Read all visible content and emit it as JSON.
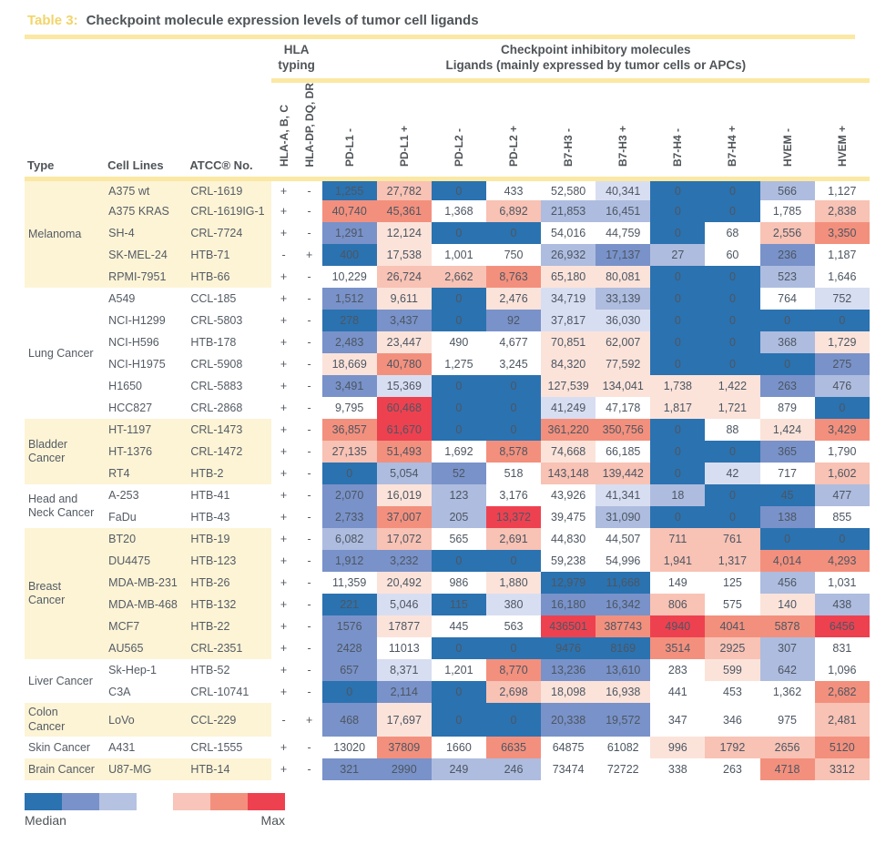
{
  "title": {
    "label": "Table 3:",
    "text": "Checkpoint molecule expression levels of tumor cell ligands"
  },
  "header": {
    "hla_group": "HLA\ntyping",
    "cp_line1": "Checkpoint inhibitory molecules",
    "cp_line2": "Ligands (mainly expressed by tumor cells or APCs)",
    "col_type": "Type",
    "col_cell_lines": "Cell Lines",
    "col_atcc": "ATCC® No.",
    "rotated_cols": [
      "HLA-A, B, C",
      "HLA-DP, DQ, DR",
      "PD-L1 -",
      "PD-L1 +",
      "PD-L2 -",
      "PD-L2 +",
      "B7-H3 -",
      "B7-H3 +",
      "B7-H4 -",
      "B7-H4 +",
      "HVEM -",
      "HVEM +"
    ]
  },
  "accents": {
    "rule_yellow": "#fbe8a2",
    "row_cream": "#fdf4d6",
    "title_gold": "#f2d469",
    "heading_text": "#4f5458",
    "body_text": "#545b64"
  },
  "palette": {
    "b3": "#2b72b0",
    "b2": "#7992c9",
    "b1": "#aebcdf",
    "b0": "#d8def1",
    "w": "#ffffff",
    "r0": "#fbe3da",
    "r1": "#f8c2b4",
    "r2": "#f3907d",
    "r3": "#ee4150"
  },
  "legend": {
    "median_label": "Median",
    "max_label": "Max",
    "blues": [
      "#2b72b0",
      "#7992c9",
      "#b5c2e2"
    ],
    "reds": [
      "#f9c4b9",
      "#f3907d",
      "#ee4150"
    ]
  },
  "groups": [
    {
      "type": "Melanoma",
      "shaded": true,
      "rows": [
        {
          "line": "A375 wt",
          "atcc": "CRL-1619",
          "hla": [
            "+",
            "-"
          ],
          "v": [
            "1,255",
            "27,782",
            "0",
            "433",
            "52,580",
            "40,341",
            "0",
            "0",
            "566",
            "1,127"
          ],
          "c": [
            "b3",
            "r1",
            "b3",
            "w",
            "w",
            "b0",
            "b3",
            "b3",
            "b1",
            "w"
          ]
        },
        {
          "line": "A375 KRAS",
          "atcc": "CRL-1619IG-1",
          "hla": [
            "+",
            "-"
          ],
          "v": [
            "40,740",
            "45,361",
            "1,368",
            "6,892",
            "21,853",
            "16,451",
            "0",
            "0",
            "1,785",
            "2,838"
          ],
          "c": [
            "r2",
            "r2",
            "w",
            "r1",
            "b1",
            "b1",
            "b3",
            "b3",
            "w",
            "r1"
          ]
        },
        {
          "line": "SH-4",
          "atcc": "CRL-7724",
          "hla": [
            "+",
            "-"
          ],
          "v": [
            "1,291",
            "12,124",
            "0",
            "0",
            "54,016",
            "44,759",
            "0",
            "68",
            "2,556",
            "3,350"
          ],
          "c": [
            "b2",
            "r0",
            "b3",
            "b3",
            "w",
            "w",
            "b3",
            "w",
            "r1",
            "r2"
          ]
        },
        {
          "line": "SK-MEL-24",
          "atcc": "HTB-71",
          "hla": [
            "-",
            "+"
          ],
          "v": [
            "400",
            "17,538",
            "1,001",
            "750",
            "26,932",
            "17,137",
            "27",
            "60",
            "236",
            "1,187"
          ],
          "c": [
            "b3",
            "r0",
            "w",
            "w",
            "b1",
            "b2",
            "b1",
            "w",
            "b2",
            "w"
          ]
        },
        {
          "line": "RPMI-7951",
          "atcc": "HTB-66",
          "hla": [
            "+",
            "-"
          ],
          "v": [
            "10,229",
            "26,724",
            "2,662",
            "8,763",
            "65,180",
            "80,081",
            "0",
            "0",
            "523",
            "1,646"
          ],
          "c": [
            "w",
            "r1",
            "r1",
            "r2",
            "r0",
            "r0",
            "b3",
            "b3",
            "b1",
            "w"
          ]
        }
      ]
    },
    {
      "type": "Lung Cancer",
      "shaded": false,
      "rows": [
        {
          "line": "A549",
          "atcc": "CCL-185",
          "hla": [
            "+",
            "-"
          ],
          "v": [
            "1,512",
            "9,611",
            "0",
            "2,476",
            "34,719",
            "33,139",
            "0",
            "0",
            "764",
            "752"
          ],
          "c": [
            "b2",
            "r0",
            "b3",
            "r0",
            "b0",
            "b1",
            "b3",
            "b3",
            "w",
            "b0"
          ]
        },
        {
          "line": "NCI-H1299",
          "atcc": "CRL-5803",
          "hla": [
            "+",
            "-"
          ],
          "v": [
            "278",
            "3,437",
            "0",
            "92",
            "37,817",
            "36,030",
            "0",
            "0",
            "0",
            "0"
          ],
          "c": [
            "b3",
            "b2",
            "b3",
            "b2",
            "b0",
            "b0",
            "b3",
            "b3",
            "b3",
            "b3"
          ]
        },
        {
          "line": "NCI-H596",
          "atcc": "HTB-178",
          "hla": [
            "+",
            "-"
          ],
          "v": [
            "2,483",
            "23,447",
            "490",
            "4,677",
            "70,851",
            "62,007",
            "0",
            "0",
            "368",
            "1,729"
          ],
          "c": [
            "b2",
            "r0",
            "w",
            "w",
            "r0",
            "r0",
            "b3",
            "b3",
            "b1",
            "r0"
          ]
        },
        {
          "line": "NCI-H1975",
          "atcc": "CRL-5908",
          "hla": [
            "+",
            "-"
          ],
          "v": [
            "18,669",
            "40,780",
            "1,275",
            "3,245",
            "84,320",
            "77,592",
            "0",
            "0",
            "0",
            "275"
          ],
          "c": [
            "r0",
            "r2",
            "w",
            "w",
            "r0",
            "r0",
            "b3",
            "b3",
            "b3",
            "b2"
          ]
        },
        {
          "line": "H1650",
          "atcc": "CRL-5883",
          "hla": [
            "+",
            "-"
          ],
          "v": [
            "3,491",
            "15,369",
            "0",
            "0",
            "127,539",
            "134,041",
            "1,738",
            "1,422",
            "263",
            "476"
          ],
          "c": [
            "b2",
            "b0",
            "b3",
            "b3",
            "r0",
            "r0",
            "r0",
            "r0",
            "b2",
            "b1"
          ]
        },
        {
          "line": "HCC827",
          "atcc": "CRL-2868",
          "hla": [
            "+",
            "-"
          ],
          "v": [
            "9,795",
            "60,468",
            "0",
            "0",
            "41,249",
            "47,178",
            "1,817",
            "1,721",
            "879",
            "0"
          ],
          "c": [
            "w",
            "r3",
            "b3",
            "b3",
            "b0",
            "w",
            "r0",
            "r0",
            "w",
            "b3"
          ]
        }
      ]
    },
    {
      "type": "Bladder\nCancer",
      "shaded": true,
      "rows": [
        {
          "line": "HT-1197",
          "atcc": "CRL-1473",
          "hla": [
            "+",
            "-"
          ],
          "v": [
            "36,857",
            "61,670",
            "0",
            "0",
            "361,220",
            "350,756",
            "0",
            "88",
            "1,424",
            "3,429"
          ],
          "c": [
            "r2",
            "r3",
            "b3",
            "b3",
            "r2",
            "r2",
            "b3",
            "w",
            "r0",
            "r2"
          ]
        },
        {
          "line": "HT-1376",
          "atcc": "CRL-1472",
          "hla": [
            "+",
            "-"
          ],
          "v": [
            "27,135",
            "51,493",
            "1,692",
            "8,578",
            "74,668",
            "66,185",
            "0",
            "0",
            "365",
            "1,790"
          ],
          "c": [
            "r1",
            "r2",
            "w",
            "r2",
            "r0",
            "w",
            "b3",
            "b3",
            "b2",
            "w"
          ]
        },
        {
          "line": "RT4",
          "atcc": "HTB-2",
          "hla": [
            "+",
            "-"
          ],
          "v": [
            "0",
            "5,054",
            "52",
            "518",
            "143,148",
            "139,442",
            "0",
            "42",
            "717",
            "1,602"
          ],
          "c": [
            "b3",
            "b1",
            "b2",
            "w",
            "r1",
            "r1",
            "b3",
            "b0",
            "w",
            "r1"
          ]
        }
      ]
    },
    {
      "type": "Head and\nNeck Cancer",
      "shaded": false,
      "rows": [
        {
          "line": "A-253",
          "atcc": "HTB-41",
          "hla": [
            "+",
            "-"
          ],
          "v": [
            "2,070",
            "16,019",
            "123",
            "3,176",
            "43,926",
            "41,341",
            "18",
            "0",
            "45",
            "477"
          ],
          "c": [
            "b2",
            "r0",
            "b1",
            "w",
            "w",
            "b0",
            "b1",
            "b3",
            "b3",
            "b1"
          ]
        },
        {
          "line": "FaDu",
          "atcc": "HTB-43",
          "hla": [
            "+",
            "-"
          ],
          "v": [
            "2,733",
            "37,007",
            "205",
            "13,372",
            "39,475",
            "31,090",
            "0",
            "0",
            "138",
            "855"
          ],
          "c": [
            "b2",
            "r2",
            "b1",
            "r3",
            "w",
            "b1",
            "b3",
            "b3",
            "b2",
            "w"
          ]
        }
      ]
    },
    {
      "type": "Breast\nCancer",
      "shaded": true,
      "rows": [
        {
          "line": "BT20",
          "atcc": "HTB-19",
          "hla": [
            "+",
            "-"
          ],
          "v": [
            "6,082",
            "17,072",
            "565",
            "2,691",
            "44,830",
            "44,507",
            "711",
            "761",
            "0",
            "0"
          ],
          "c": [
            "b1",
            "r1",
            "w",
            "r1",
            "w",
            "w",
            "r1",
            "r1",
            "b3",
            "b3"
          ]
        },
        {
          "line": "DU4475",
          "atcc": "HTB-123",
          "hla": [
            "+",
            "-"
          ],
          "v": [
            "1,912",
            "3,232",
            "0",
            "0",
            "59,238",
            "54,996",
            "1,941",
            "1,317",
            "4,014",
            "4,293"
          ],
          "c": [
            "b2",
            "b2",
            "b3",
            "b3",
            "w",
            "w",
            "r1",
            "r1",
            "r2",
            "r2"
          ]
        },
        {
          "line": "MDA-MB-231",
          "atcc": "HTB-26",
          "hla": [
            "+",
            "-"
          ],
          "v": [
            "11,359",
            "20,492",
            "986",
            "1,880",
            "12,979",
            "11,668",
            "149",
            "125",
            "456",
            "1,031"
          ],
          "c": [
            "w",
            "r0",
            "w",
            "r0",
            "b3",
            "b3",
            "w",
            "w",
            "b1",
            "w"
          ]
        },
        {
          "line": "MDA-MB-468",
          "atcc": "HTB-132",
          "hla": [
            "+",
            "-"
          ],
          "v": [
            "221",
            "5,046",
            "115",
            "380",
            "16,180",
            "16,342",
            "806",
            "575",
            "140",
            "438"
          ],
          "c": [
            "b3",
            "b0",
            "b3",
            "b0",
            "b2",
            "b2",
            "r1",
            "w",
            "r0",
            "b1"
          ]
        },
        {
          "line": "MCF7",
          "atcc": "HTB-22",
          "hla": [
            "+",
            "-"
          ],
          "v": [
            "1576",
            "17877",
            "445",
            "563",
            "436501",
            "387743",
            "4940",
            "4041",
            "5878",
            "6456"
          ],
          "c": [
            "b2",
            "r0",
            "w",
            "w",
            "r3",
            "r2",
            "r3",
            "r2",
            "r2",
            "r3"
          ]
        },
        {
          "line": "AU565",
          "atcc": "CRL-2351",
          "hla": [
            "+",
            "-"
          ],
          "v": [
            "2428",
            "11013",
            "0",
            "0",
            "9476",
            "8169",
            "3514",
            "2925",
            "307",
            "831"
          ],
          "c": [
            "b2",
            "w",
            "b3",
            "b3",
            "b3",
            "b3",
            "r2",
            "r1",
            "b1",
            "w"
          ]
        }
      ]
    },
    {
      "type": "Liver Cancer",
      "shaded": false,
      "rows": [
        {
          "line": "Sk-Hep-1",
          "atcc": "HTB-52",
          "hla": [
            "+",
            "-"
          ],
          "v": [
            "657",
            "8,371",
            "1,201",
            "8,770",
            "13,236",
            "13,610",
            "283",
            "599",
            "642",
            "1,096"
          ],
          "c": [
            "b2",
            "b0",
            "w",
            "r2",
            "b2",
            "b2",
            "w",
            "r0",
            "b1",
            "w"
          ]
        },
        {
          "line": "C3A",
          "atcc": "CRL-10741",
          "hla": [
            "+",
            "-"
          ],
          "v": [
            "0",
            "2,114",
            "0",
            "2,698",
            "18,098",
            "16,938",
            "441",
            "453",
            "1,362",
            "2,682"
          ],
          "c": [
            "b3",
            "b2",
            "b3",
            "r1",
            "r0",
            "r0",
            "w",
            "w",
            "w",
            "r2"
          ]
        }
      ]
    },
    {
      "type": "Colon\nCancer",
      "shaded": true,
      "tall": true,
      "rows": [
        {
          "line": "LoVo",
          "atcc": "CCL-229",
          "hla": [
            "-",
            "+"
          ],
          "v": [
            "468",
            "17,697",
            "0",
            "0",
            "20,338",
            "19,572",
            "347",
            "346",
            "975",
            "2,481"
          ],
          "c": [
            "b2",
            "r0",
            "b3",
            "b3",
            "b2",
            "b2",
            "w",
            "w",
            "w",
            "r1"
          ]
        }
      ]
    },
    {
      "type": "Skin Cancer",
      "shaded": false,
      "rows": [
        {
          "line": "A431",
          "atcc": "CRL-1555",
          "hla": [
            "+",
            "-"
          ],
          "v": [
            "13020",
            "37809",
            "1660",
            "6635",
            "64875",
            "61082",
            "996",
            "1792",
            "2656",
            "5120"
          ],
          "c": [
            "w",
            "r2",
            "w",
            "r2",
            "w",
            "w",
            "r0",
            "r1",
            "r1",
            "r2"
          ]
        }
      ]
    },
    {
      "type": "Brain Cancer",
      "shaded": true,
      "rows": [
        {
          "line": "U87-MG",
          "atcc": "HTB-14",
          "hla": [
            "+",
            "-"
          ],
          "v": [
            "321",
            "2990",
            "249",
            "246",
            "73474",
            "72722",
            "338",
            "263",
            "4718",
            "3312"
          ],
          "c": [
            "b2",
            "b2",
            "b1",
            "b1",
            "w",
            "w",
            "w",
            "w",
            "r2",
            "r1"
          ]
        }
      ]
    }
  ]
}
